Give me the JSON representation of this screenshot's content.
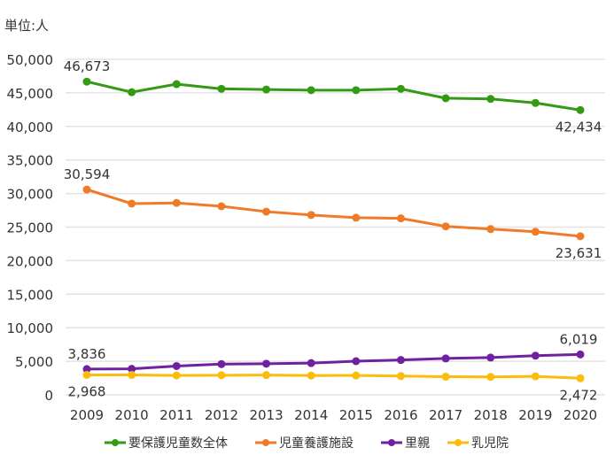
{
  "chart_data": {
    "type": "line",
    "unit_label": "単位:人",
    "x": [
      "2009",
      "2010",
      "2011",
      "2012",
      "2013",
      "2014",
      "2015",
      "2016",
      "2017",
      "2018",
      "2019",
      "2020"
    ],
    "ylim": [
      0,
      50000
    ],
    "yticks": [
      0,
      5000,
      10000,
      15000,
      20000,
      25000,
      30000,
      35000,
      40000,
      45000,
      50000
    ],
    "ytick_labels": [
      "0",
      "5,000",
      "10,000",
      "15,000",
      "20,000",
      "25,000",
      "30,000",
      "35,000",
      "40,000",
      "45,000",
      "50,000"
    ],
    "grid": true,
    "legend_position": "bottom",
    "series": [
      {
        "name": "要保護児童数全体",
        "color": "#339a14",
        "values": [
          46673,
          45100,
          46300,
          45600,
          45500,
          45400,
          45400,
          45600,
          44200,
          44100,
          43500,
          42434
        ],
        "labels": {
          "first": "46,673",
          "last": "42,434"
        },
        "label_pos": {
          "first": "above",
          "last": "below"
        }
      },
      {
        "name": "児童養護施設",
        "color": "#ef7a28",
        "values": [
          30594,
          28500,
          28600,
          28100,
          27300,
          26800,
          26400,
          26300,
          25100,
          24700,
          24300,
          23631
        ],
        "labels": {
          "first": "30,594",
          "last": "23,631"
        },
        "label_pos": {
          "first": "above",
          "last": "below"
        }
      },
      {
        "name": "里親",
        "color": "#7021a0",
        "values": [
          3836,
          3876,
          4295,
          4578,
          4636,
          4731,
          5013,
          5190,
          5424,
          5556,
          5832,
          6019
        ],
        "labels": {
          "first": "3,836",
          "last": "6,019"
        },
        "label_pos": {
          "first": "above",
          "last": "above"
        }
      },
      {
        "name": "乳児院",
        "color": "#fcbc0b",
        "values": [
          2968,
          2963,
          2890,
          2924,
          2948,
          2876,
          2882,
          2801,
          2706,
          2678,
          2760,
          2472
        ],
        "labels": {
          "first": "2,968",
          "last": "2,472"
        },
        "label_pos": {
          "first": "below",
          "last": "below"
        }
      }
    ]
  }
}
